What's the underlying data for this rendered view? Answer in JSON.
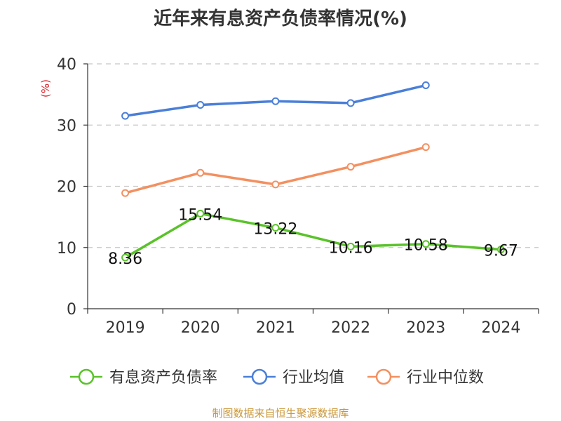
{
  "chart_data": {
    "type": "line",
    "title": "近年来有息资产负债率情况(%)",
    "ylabel": "(%)",
    "categories": [
      "2019",
      "2020",
      "2021",
      "2022",
      "2023",
      "2024"
    ],
    "ylim": [
      0,
      40
    ],
    "yticks": [
      0,
      10,
      20,
      30,
      40
    ],
    "grid": true,
    "legend_position": "bottom",
    "series": [
      {
        "name": "有息资产负债率",
        "color": "#5ac22a",
        "values": [
          8.36,
          15.54,
          13.22,
          10.16,
          10.58,
          9.67
        ],
        "labels": [
          "8.36",
          "15.54",
          "13.22",
          "10.16",
          "10.58",
          "9.67"
        ]
      },
      {
        "name": "行业均值",
        "color": "#4a7fd8",
        "values": [
          31.5,
          33.3,
          33.9,
          33.6,
          36.5,
          null
        ]
      },
      {
        "name": "行业中位数",
        "color": "#f39060",
        "values": [
          18.9,
          22.2,
          20.3,
          23.2,
          26.4,
          null
        ]
      }
    ]
  },
  "footer": {
    "source": "制图数据来自恒生聚源数据库",
    "source_color": "#c9973a"
  }
}
